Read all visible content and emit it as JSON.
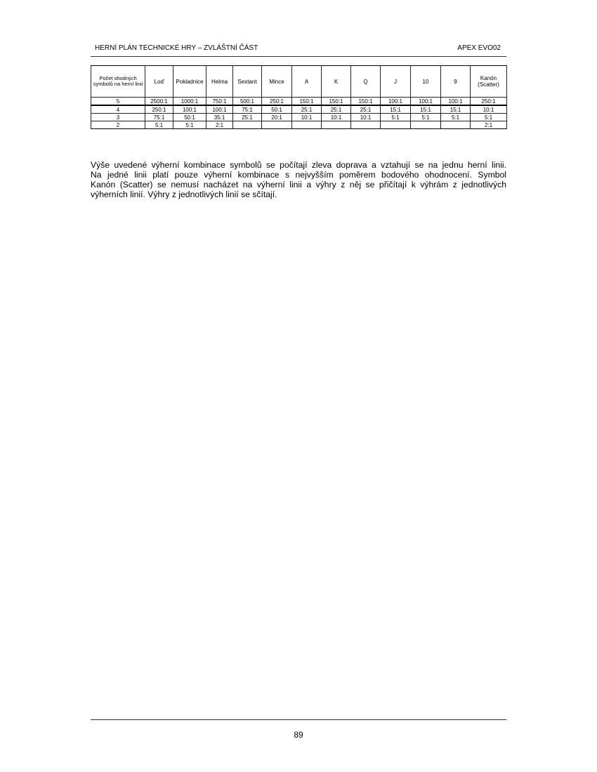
{
  "header": {
    "title": "HERNÍ PLÁN TECHNICKÉ HRY – ZVLÁŠTNÍ ČÁST",
    "code": "APEX EVO02"
  },
  "table": {
    "headers": [
      "Počet shodných symbolů na herní linii",
      "Loď",
      "Pokladnice",
      "Helma",
      "Sextant",
      "Mince",
      "A",
      "K",
      "Q",
      "J",
      "10",
      "9",
      "Kanón (Scatter)"
    ],
    "rows": [
      [
        "5",
        "2500:1",
        "1000:1",
        "750:1",
        "500:1",
        "250:1",
        "150:1",
        "150:1",
        "150:1",
        "100:1",
        "100:1",
        "100:1",
        "250:1"
      ],
      [
        "4",
        "250:1",
        "100:1",
        "100:1",
        "75:1",
        "50:1",
        "25:1",
        "25:1",
        "25:1",
        "15:1",
        "15:1",
        "15:1",
        "10:1"
      ],
      [
        "3",
        "75:1",
        "50:1",
        "35:1",
        "25:1",
        "20:1",
        "10:1",
        "10:1",
        "10:1",
        "5:1",
        "5:1",
        "5:1",
        "5:1"
      ],
      [
        "2",
        "5:1",
        "5:1",
        "2:1",
        "",
        "",
        "",
        "",
        "",
        "",
        "",
        "",
        "2:1"
      ]
    ]
  },
  "paragraph_lines": [
    "Výše uvedené výherní kombinace symbolů se počítají zleva doprava a vztahují se na jednu herní linii.",
    "Na jedné linii platí pouze výherní kombinace s nejvyšším poměrem bodového ohodnocení. Symbol",
    "Kanón (Scatter) se nemusí nacházet na výherní linii a výhry z něj se přičítají k výhrám z jednotlivých",
    "výherních linií. Výhry z jednotlivých linií se sčítají."
  ],
  "footer": {
    "page_number": "89"
  }
}
